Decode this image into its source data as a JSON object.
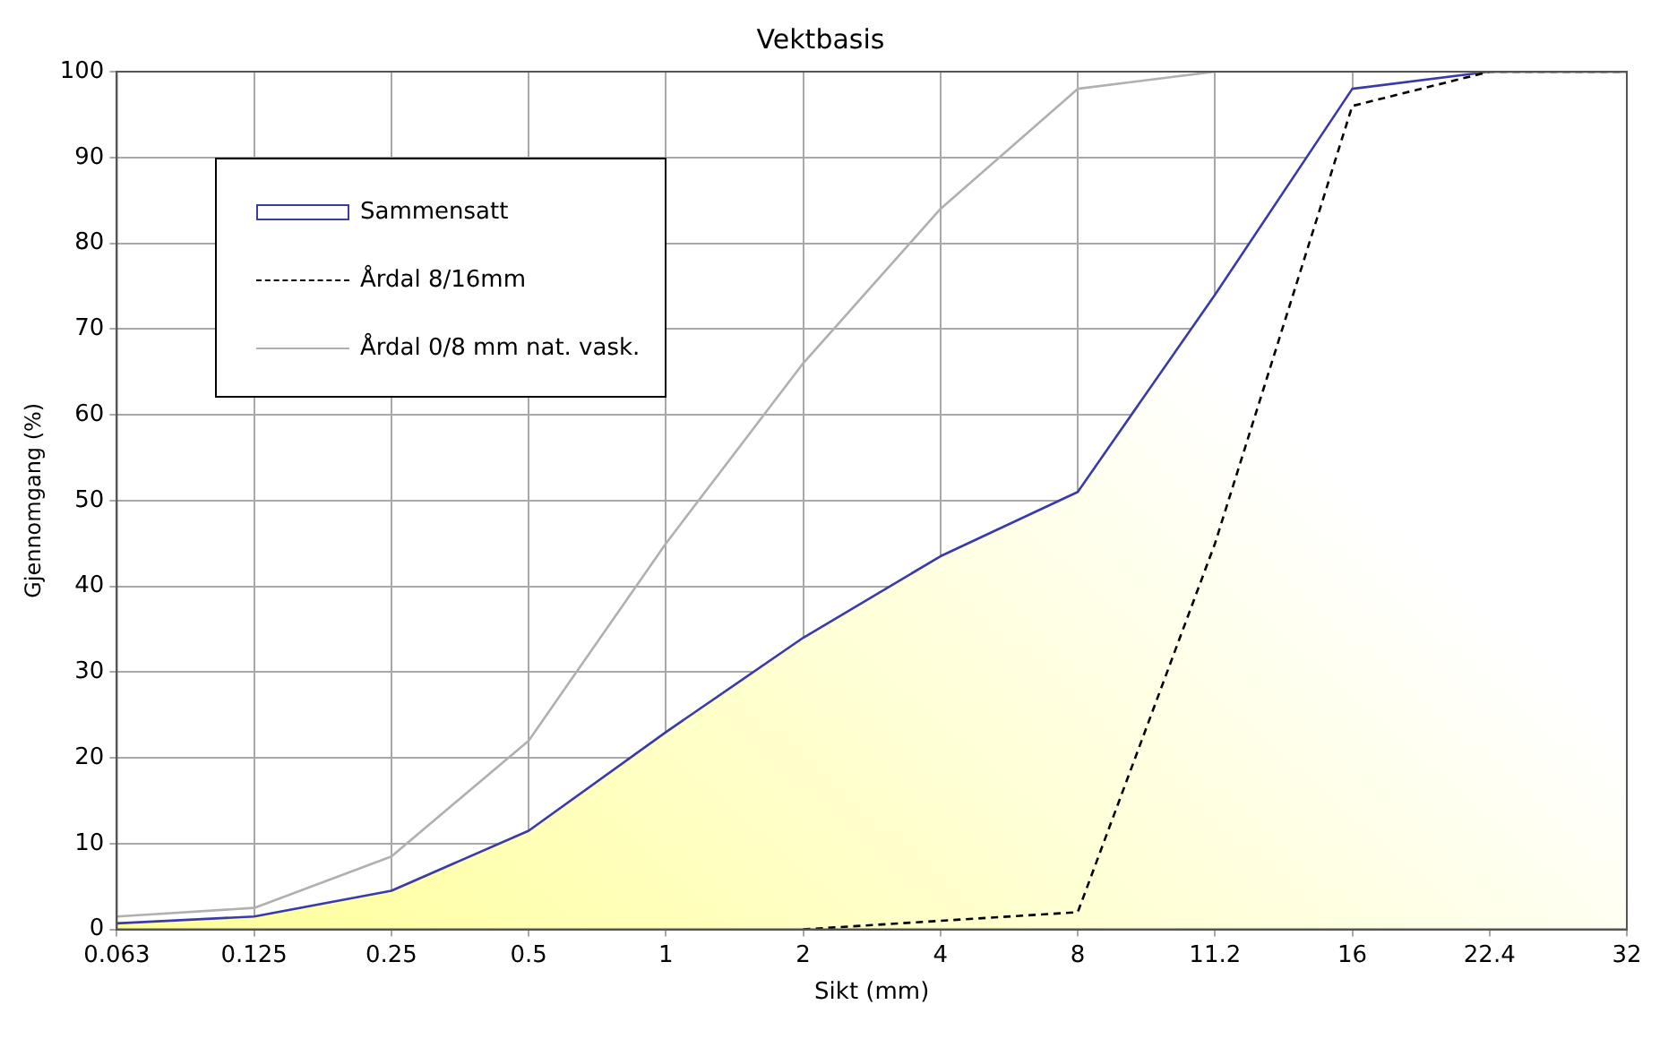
{
  "chart_data": {
    "type": "line",
    "title": "Vektbasis",
    "xlabel": "Sikt (mm)",
    "ylabel": "Gjennomgang (%)",
    "categories": [
      "0.063",
      "0.125",
      "0.25",
      "0.5",
      "1",
      "2",
      "4",
      "8",
      "11.2",
      "16",
      "22.4",
      "32"
    ],
    "series": [
      {
        "name": "Sammensatt",
        "type": "area",
        "color": "#3a3aa8",
        "values": [
          0.7,
          1.5,
          4.5,
          11.5,
          23,
          34,
          43.5,
          51,
          74,
          98,
          100,
          100
        ]
      },
      {
        "name": "Årdal 8/16mm",
        "color": "#000000",
        "line_style": "dashed",
        "values": [
          null,
          null,
          null,
          null,
          null,
          0,
          1,
          2,
          45,
          96,
          100,
          100
        ]
      },
      {
        "name": "Årdal 0/8 mm nat. vask.",
        "color": "#b0b0b0",
        "values": [
          1.5,
          2.5,
          8.5,
          22,
          45,
          66,
          84,
          98,
          100,
          100,
          100,
          100
        ]
      }
    ],
    "ylim": [
      0,
      100
    ],
    "yticks": [
      0,
      10,
      20,
      30,
      40,
      50,
      60,
      70,
      80,
      90,
      100
    ],
    "grid": true,
    "legend": "top left",
    "marker": "none"
  }
}
